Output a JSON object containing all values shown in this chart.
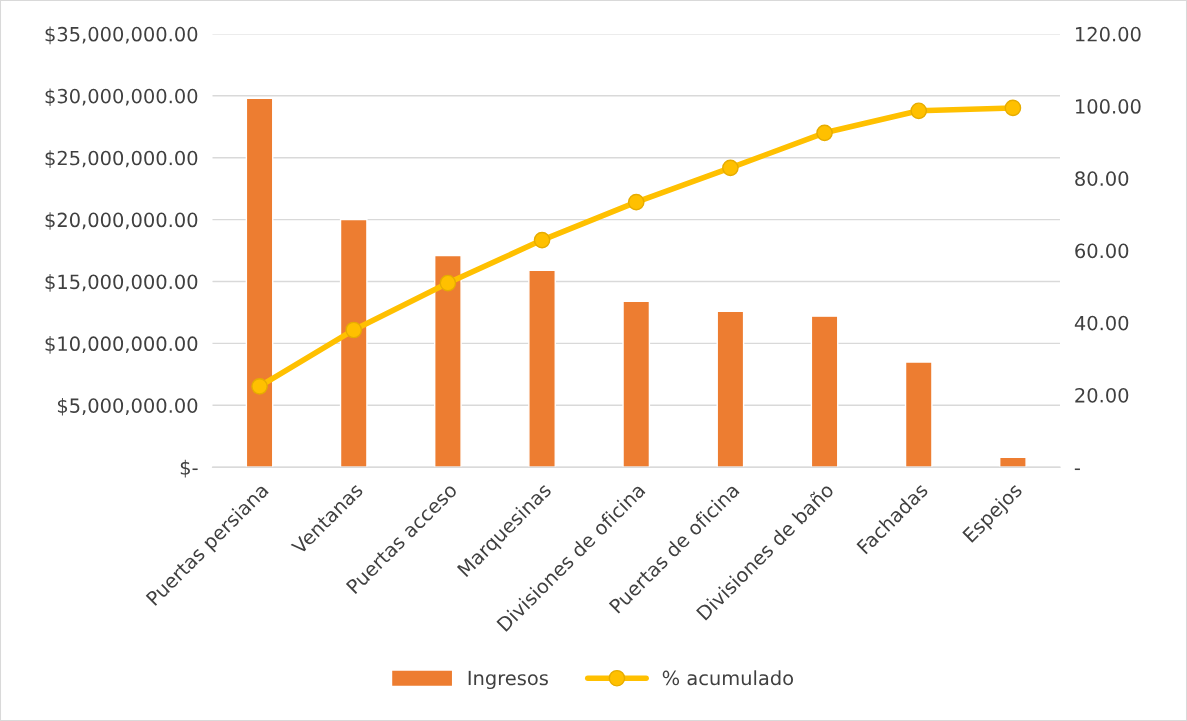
{
  "chart_data": {
    "type": "bar",
    "categories": [
      "Puertas persiana",
      "Ventanas",
      "Puertas acceso",
      "Marquesinas",
      "Divisiones de oficina",
      "Puertas de oficina",
      "Divisiones de baño",
      "Fachadas",
      "Espejos"
    ],
    "series": [
      {
        "name": "Ingresos",
        "color": "#ed7d31",
        "values": [
          29800000,
          20000000,
          17100000,
          15900000,
          13400000,
          12600000,
          12200000,
          8500000,
          800000
        ]
      },
      {
        "name": "% acumulado",
        "type": "line",
        "axis": "y2",
        "color": "#ffc000",
        "marker": "circle",
        "values": [
          22.4,
          38.0,
          51.0,
          62.9,
          73.4,
          82.9,
          92.6,
          98.7,
          99.5
        ]
      }
    ],
    "ylim": [
      0,
      35000000
    ],
    "yticks": [
      {
        "value": 0,
        "label": "$-"
      },
      {
        "value": 5000000,
        "label": "$5,000,000.00"
      },
      {
        "value": 10000000,
        "label": "$10,000,000.00"
      },
      {
        "value": 15000000,
        "label": "$15,000,000.00"
      },
      {
        "value": 20000000,
        "label": "$20,000,000.00"
      },
      {
        "value": 25000000,
        "label": "$25,000,000.00"
      },
      {
        "value": 30000000,
        "label": "$30,000,000.00"
      },
      {
        "value": 35000000,
        "label": "$35,000,000.00"
      }
    ],
    "y2lim": [
      0,
      120
    ],
    "y2ticks": [
      {
        "value": 0,
        "label": "-"
      },
      {
        "value": 20,
        "label": "20.00"
      },
      {
        "value": 40,
        "label": "40.00"
      },
      {
        "value": 60,
        "label": "60.00"
      },
      {
        "value": 80,
        "label": "80.00"
      },
      {
        "value": 100,
        "label": "100.00"
      },
      {
        "value": 120,
        "label": "120.00"
      }
    ],
    "grid": "y",
    "legend": "bottom"
  }
}
